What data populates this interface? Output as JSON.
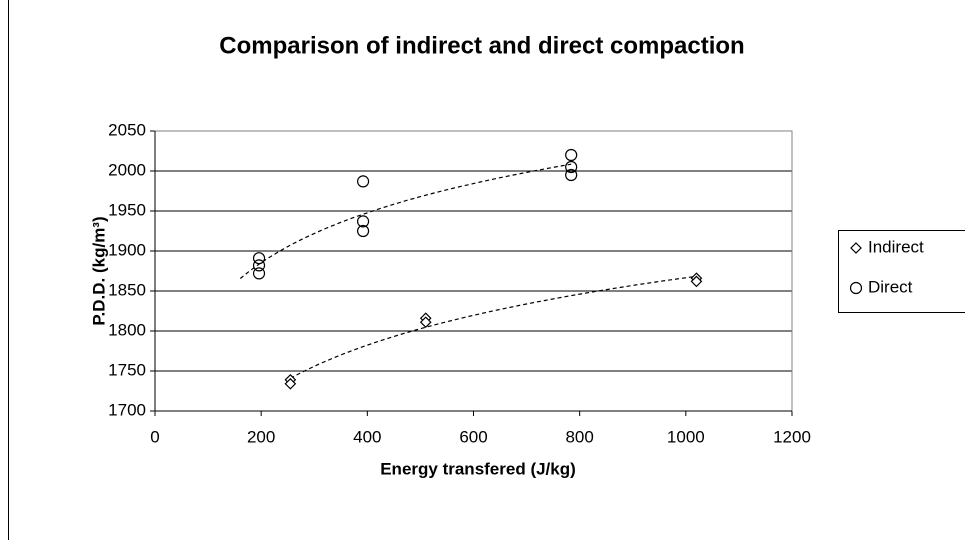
{
  "chart_data": {
    "type": "scatter",
    "title": "Comparison of indirect and direct compaction",
    "x_label": "Energy transfered (J/kg)",
    "y_label": "P.D.D. (kg/m³)",
    "xlim": [
      0,
      1200
    ],
    "xticks": [
      0,
      200,
      400,
      600,
      800,
      1000,
      1200
    ],
    "ylim": [
      1700,
      2050
    ],
    "yticks": [
      1700,
      1750,
      1800,
      1850,
      1900,
      1950,
      2000,
      2050
    ],
    "grid": true,
    "legend": "right",
    "trendline": "logarithmic",
    "series": [
      {
        "name": "Indirect",
        "marker": "diamond",
        "color": "#000000",
        "x": [
          255,
          255,
          510,
          510,
          1020,
          1020
        ],
        "values": [
          1739,
          1734,
          1816,
          1811,
          1866,
          1862
        ]
      },
      {
        "name": "Direct",
        "marker": "circle",
        "color": "#000000",
        "x": [
          196,
          196,
          196,
          392,
          392,
          392,
          784,
          784,
          784
        ],
        "values": [
          1891,
          1882,
          1872,
          1987,
          1937,
          1925,
          2020,
          2005,
          1995
        ]
      }
    ]
  }
}
